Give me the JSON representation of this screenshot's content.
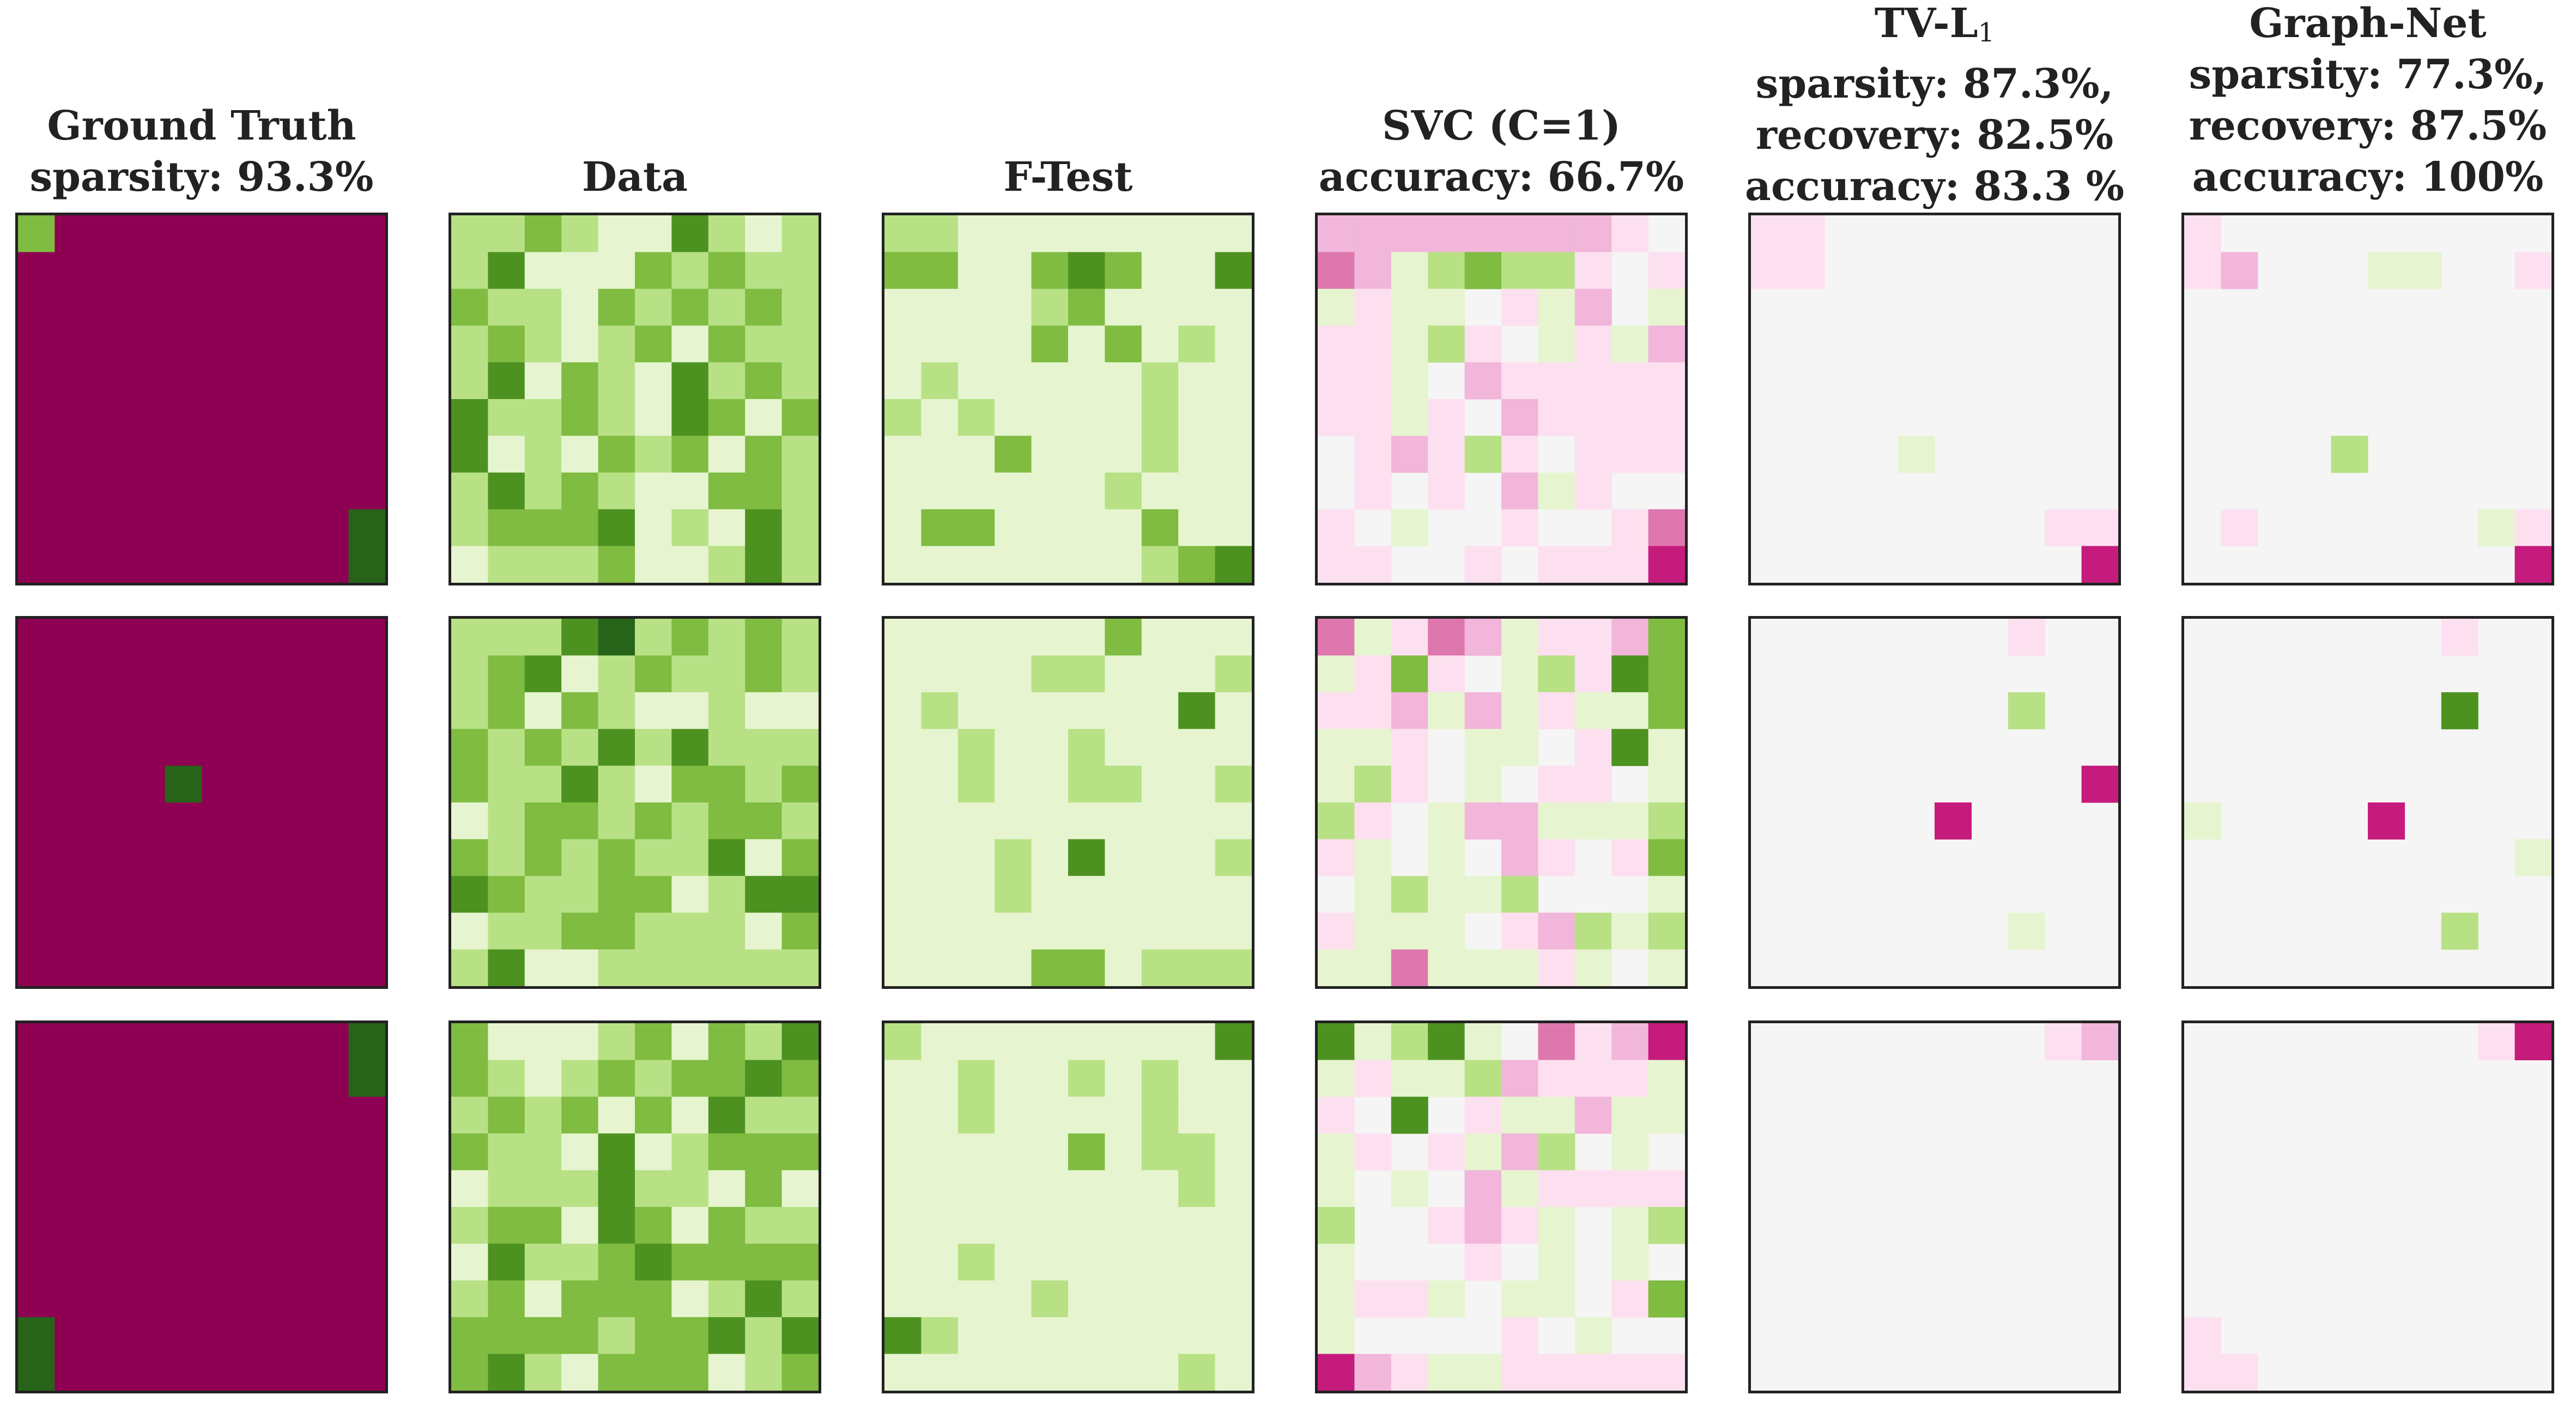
{
  "colors": {
    "scale": [
      "#8e0152",
      "#c51b7d",
      "#de77ae",
      "#f1b6da",
      "#fde0ef",
      "#f5f5f5",
      "#e6f5d0",
      "#b8e186",
      "#7fbc41",
      "#4d9221",
      "#276419"
    ]
  },
  "chart_data": {
    "type": "heatmap",
    "value_range": [
      -1,
      1
    ],
    "value_levels": "each cell is a digit 0-A: 0 = -1.0 (dark pink), 5 = 0.0, A = +1.0 (dark green)",
    "columns": [
      {
        "key": "ground-truth",
        "title": "Ground Truth",
        "lines": [
          "sparsity: 93.3%"
        ],
        "panels": [
          [
            "8000000000",
            "0000000000",
            "0000000000",
            "0000000000",
            "0000000000",
            "0000000000",
            "0000000000",
            "0000000000",
            "000000000A",
            "000000000A"
          ],
          [
            "0000000000",
            "0000000000",
            "0000000000",
            "0000000000",
            "0000A00000",
            "0000000000",
            "0000000000",
            "0000000000",
            "0000000000",
            "0000000000"
          ],
          [
            "000000000A",
            "000000000A",
            "0000000000",
            "0000000000",
            "0000000000",
            "0000000000",
            "0000000000",
            "0000000000",
            "A000000000",
            "A000000000"
          ]
        ]
      },
      {
        "key": "data",
        "title": "Data",
        "lines": [],
        "panels": [
          [
            "7787669767",
            "7966687877",
            "8776878787",
            "7876786877",
            "7968769787",
            "9778769868",
            "9676878687",
            "7978766887",
            "7888967697",
            "6777866797"
          ],
          [
            "7779A78787",
            "7896787787",
            "7868766766",
            "8787979777",
            "8779768878",
            "6788787887",
            "8787877968",
            "9877886799",
            "6778877768",
            "7966777777"
          ],
          [
            "8666786879",
            "8767878898",
            "7878686977",
            "8776967888",
            "6777977686",
            "7886986877",
            "6977898888",
            "7868886797",
            "8888788979",
            "8976888678"
          ]
        ]
      },
      {
        "key": "f-test",
        "title": "F-Test",
        "lines": [],
        "panels": [
          [
            "7766666666",
            "8866898669",
            "6666786666",
            "6666868676",
            "6766666766",
            "7676666766",
            "6668666766",
            "6666667666",
            "6886666866",
            "6666666789"
          ],
          [
            "6666668666",
            "6666776667",
            "6766666696",
            "6676676666",
            "6676677667",
            "6666666666",
            "6667696667",
            "6667666666",
            "6666666666",
            "6666886777"
          ],
          [
            "7666666669",
            "6676676766",
            "6676666766",
            "6666686776",
            "6666666676",
            "6666666666",
            "6676666666",
            "6666766666",
            "9766666666",
            "6666666676"
          ]
        ]
      },
      {
        "key": "svc",
        "title": "SVC (C=1)",
        "lines": [
          "accuracy: 66.7%"
        ],
        "panels": [
          [
            "3333333345",
            "2367877454",
            "6466546356",
            "4467456463",
            "4465344444",
            "4464534444",
            "5434745444",
            "5454536455",
            "4565545542",
            "4455454441"
          ],
          [
            "2642364438",
            "6484567498",
            "4436364668",
            "6645665496",
            "6745654456",
            "7456336667",
            "4656534548",
            "5676675556",
            "4666543767",
            "6626664656"
          ],
          [
            "9679652431",
            "6466734446",
            "4595466366",
            "6454637565",
            "6565364444",
            "7554346567",
            "6555456565",
            "6446566548",
            "6555545655",
            "1346644444"
          ]
        ]
      },
      {
        "key": "tv-l1",
        "title": "TV-L",
        "title_subscript": "1",
        "lines": [
          "sparsity: 87.3%,",
          "recovery: 82.5%",
          "accuracy: 83.3 %"
        ],
        "panels": [
          [
            "4455555555",
            "4455555555",
            "5555555555",
            "5555555555",
            "5555555555",
            "5555555555",
            "5555655555",
            "5555555555",
            "5555555544",
            "5555555551"
          ],
          [
            "5555555455",
            "5555555555",
            "5555555755",
            "5555555555",
            "5555555551",
            "5555515555",
            "5555555555",
            "5555555555",
            "5555555655",
            "5555555555"
          ],
          [
            "5555555543",
            "5555555555",
            "5555555555",
            "5555555555",
            "5555555555",
            "5555555555",
            "5555555555",
            "5555555555",
            "5555555555",
            "5555555555"
          ]
        ]
      },
      {
        "key": "graph-net",
        "title": "Graph-Net",
        "lines": [
          "sparsity: 77.3%,",
          "recovery: 87.5%",
          "accuracy: 100%"
        ],
        "panels": [
          [
            "4555555555",
            "4355566554",
            "5555555555",
            "5555555555",
            "5555555555",
            "5555555555",
            "5555755555",
            "5555555555",
            "5455555564",
            "5555555551"
          ],
          [
            "5555555455",
            "5555555555",
            "5555555955",
            "5555555555",
            "5555555555",
            "6555515555",
            "5555555556",
            "5555555555",
            "5555555755",
            "5555555555"
          ],
          [
            "5555555541",
            "5555555555",
            "5555555555",
            "5555555555",
            "5555555555",
            "5555555555",
            "5555555555",
            "5555555555",
            "4555555555",
            "4455555555"
          ]
        ]
      }
    ]
  }
}
